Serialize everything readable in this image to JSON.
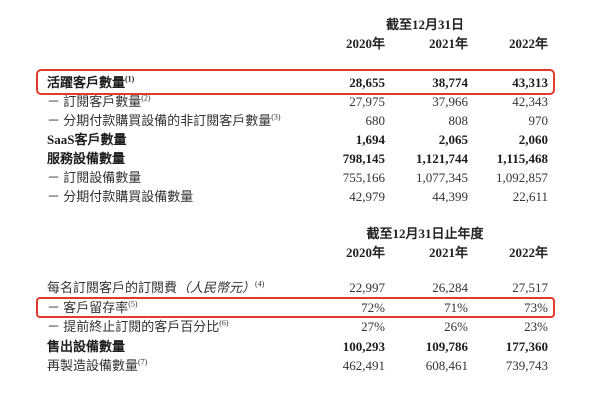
{
  "colors": {
    "background": "#ffffff",
    "text": "#333333",
    "highlight_border": "#e23b2d"
  },
  "section1": {
    "period_header": "截至12月31日",
    "years": [
      "2020年",
      "2021年",
      "2022年"
    ],
    "rows": [
      {
        "label": "活躍客戶數量",
        "sup": "(1)",
        "values": [
          "28,655",
          "38,774",
          "43,313"
        ],
        "bold": true,
        "highlighted": true
      },
      {
        "label": "－ 訂閱客戶數量",
        "sup": "(2)",
        "values": [
          "27,975",
          "37,966",
          "42,343"
        ],
        "bold": false
      },
      {
        "label": "－ 分期付款購買設備的非訂閱客戶數量",
        "sup": "(3)",
        "values": [
          "680",
          "808",
          "970"
        ],
        "bold": false
      },
      {
        "label": "SaaS客戶數量",
        "values": [
          "1,694",
          "2,065",
          "2,060"
        ],
        "bold": true
      },
      {
        "label": "服務設備數量",
        "values": [
          "798,145",
          "1,121,744",
          "1,115,468"
        ],
        "bold": true
      },
      {
        "label": "－ 訂閱設備數量",
        "values": [
          "755,166",
          "1,077,345",
          "1,092,857"
        ],
        "bold": false
      },
      {
        "label": "－ 分期付款購買設備數量",
        "values": [
          "42,979",
          "44,399",
          "22,611"
        ],
        "bold": false
      }
    ]
  },
  "section2": {
    "period_header": "截至12月31日止年度",
    "years": [
      "2020年",
      "2021年",
      "2022年"
    ],
    "rows": [
      {
        "label": "每名訂閱客戶的訂閱費",
        "label_italic": "（人民幣元）",
        "sup": "(4)",
        "values": [
          "22,997",
          "26,284",
          "27,517"
        ],
        "bold": false
      },
      {
        "label": "－ 客戶留存率",
        "sup": "(5)",
        "values": [
          "72%",
          "71%",
          "73%"
        ],
        "bold": false,
        "highlighted": true
      },
      {
        "label": "－ 提前終止訂閱的客戶百分比",
        "sup": "(6)",
        "values": [
          "27%",
          "26%",
          "23%"
        ],
        "bold": false
      },
      {
        "label": "售出設備數量",
        "values": [
          "100,293",
          "109,786",
          "177,360"
        ],
        "bold": true
      },
      {
        "label": "再製造設備數量",
        "sup": "(7)",
        "values": [
          "462,491",
          "608,461",
          "739,743"
        ],
        "bold": false
      }
    ]
  }
}
